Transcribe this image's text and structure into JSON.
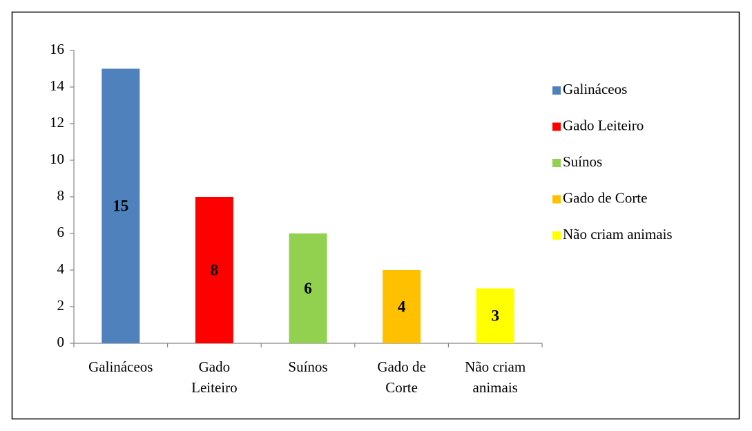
{
  "chart_data": {
    "type": "bar",
    "categories": [
      "Galináceos",
      "Gado Leiteiro",
      "Suínos",
      "Gado de Corte",
      "Não criam animais"
    ],
    "values": [
      15,
      8,
      6,
      4,
      3
    ],
    "colors": [
      "#4f81bd",
      "#ff0000",
      "#92d050",
      "#ffc000",
      "#ffff00"
    ],
    "ylim": [
      0,
      16
    ],
    "yticks": [
      0,
      2,
      4,
      6,
      8,
      10,
      12,
      14,
      16
    ],
    "grid": false,
    "legend": "right"
  }
}
